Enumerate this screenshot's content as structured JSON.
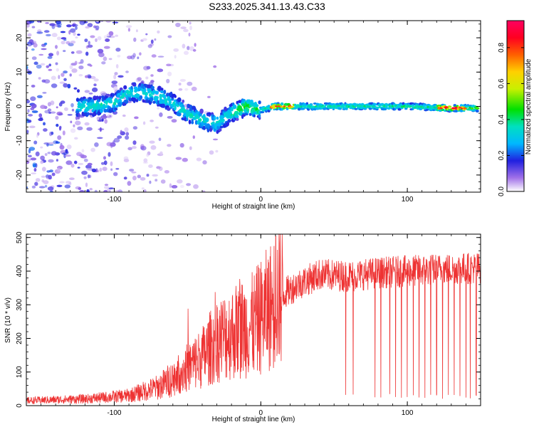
{
  "title": "S233.2025.341.13.43.C33",
  "chart_data": [
    {
      "type": "heatmap",
      "name": "spectrogram",
      "xlabel": "Height of straight line (km)",
      "ylabel": "Frequency (Hz)",
      "xlim": [
        -160,
        150
      ],
      "ylim": [
        -25,
        25
      ],
      "xticks": [
        -100,
        0,
        100
      ],
      "yticks": [
        -20,
        -10,
        0,
        10,
        20
      ],
      "colorbar": {
        "label": "Normalized spectral amplitude",
        "range": [
          0.0,
          0.95
        ],
        "ticks": [
          0.0,
          0.2,
          0.4,
          0.6,
          0.8
        ],
        "tick_labels": [
          "0.0",
          "0.2",
          "0.4",
          "0.6",
          "0.8"
        ]
      },
      "ridge_center_hz": [
        {
          "x": -115,
          "y": 0
        },
        {
          "x": -100,
          "y": 1
        },
        {
          "x": -90,
          "y": 4
        },
        {
          "x": -80,
          "y": 4
        },
        {
          "x": -70,
          "y": 3
        },
        {
          "x": -60,
          "y": 1
        },
        {
          "x": -50,
          "y": -2
        },
        {
          "x": -40,
          "y": -4
        },
        {
          "x": -30,
          "y": -5
        },
        {
          "x": -20,
          "y": -2
        },
        {
          "x": -10,
          "y": 0
        },
        {
          "x": 0,
          "y": -1
        },
        {
          "x": 10,
          "y": 0
        },
        {
          "x": 30,
          "y": 0
        },
        {
          "x": 60,
          "y": 0
        },
        {
          "x": 100,
          "y": 0
        },
        {
          "x": 130,
          "y": -0.5
        },
        {
          "x": 148,
          "y": -0.5
        }
      ],
      "peak_amplitude_near_x": [
        15,
        130
      ]
    },
    {
      "type": "line",
      "name": "snr",
      "xlabel": "Height of straight line (km)",
      "ylabel": "SNR (10 * v/v)",
      "xlim": [
        -160,
        150
      ],
      "ylim": [
        0,
        510
      ],
      "xticks": [
        -100,
        0,
        100
      ],
      "yticks": [
        0,
        100,
        200,
        300,
        400,
        500
      ],
      "color": "#ee3333",
      "envelope": [
        {
          "x": -160,
          "y": 15
        },
        {
          "x": -120,
          "y": 20
        },
        {
          "x": -90,
          "y": 30
        },
        {
          "x": -70,
          "y": 55
        },
        {
          "x": -55,
          "y": 95
        },
        {
          "x": -40,
          "y": 140
        },
        {
          "x": -30,
          "y": 190
        },
        {
          "x": -15,
          "y": 220
        },
        {
          "x": -5,
          "y": 235
        },
        {
          "x": 5,
          "y": 280
        },
        {
          "x": 15,
          "y": 330
        },
        {
          "x": 25,
          "y": 360
        },
        {
          "x": 40,
          "y": 390
        },
        {
          "x": 60,
          "y": 385
        },
        {
          "x": 80,
          "y": 395
        },
        {
          "x": 100,
          "y": 400
        },
        {
          "x": 120,
          "y": 405
        },
        {
          "x": 150,
          "y": 410
        }
      ],
      "dropouts_x": [
        58,
        63,
        78,
        82,
        88,
        92,
        96,
        100,
        104,
        108,
        112,
        116,
        120,
        124,
        128,
        132,
        136,
        140,
        143,
        147
      ]
    }
  ]
}
